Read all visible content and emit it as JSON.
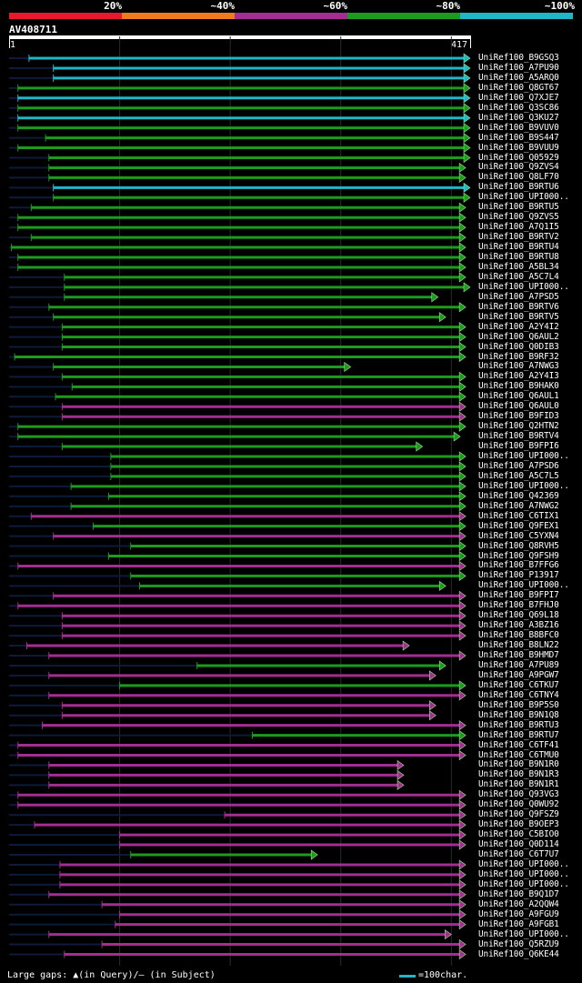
{
  "identity_scale": {
    "labels": [
      "20%",
      "~40%",
      "~60%",
      "~80%",
      "~100%"
    ],
    "colors": [
      "#e8192c",
      "#f07b1f",
      "#a42d92",
      "#1d9b1f",
      "#1fb7c7"
    ]
  },
  "query": {
    "name": "AV408711",
    "start": "1",
    "end": "417",
    "length": 417
  },
  "colors": {
    "cyan": "#1fb7c7",
    "green": "#1d9b1f",
    "purple": "#a42d92",
    "faint": "#0d1a3a"
  },
  "hits": [
    {
      "label": "UniRef100_B9GSQ3",
      "color": "cyan",
      "s": 18,
      "e": 417
    },
    {
      "label": "UniRef100_A7PU90",
      "color": "cyan",
      "s": 40,
      "e": 417
    },
    {
      "label": "UniRef100_A5ARQ0",
      "color": "cyan",
      "s": 40,
      "e": 417
    },
    {
      "label": "UniRef100_Q8GT67",
      "color": "green",
      "s": 8,
      "e": 417
    },
    {
      "label": "UniRef100_Q7XJE7",
      "color": "cyan",
      "s": 8,
      "e": 417
    },
    {
      "label": "UniRef100_Q3SC86",
      "color": "green",
      "s": 8,
      "e": 417
    },
    {
      "label": "UniRef100_Q3KU27",
      "color": "cyan",
      "s": 8,
      "e": 417
    },
    {
      "label": "UniRef100_B9VUV0",
      "color": "green",
      "s": 8,
      "e": 417
    },
    {
      "label": "UniRef100_B9S447",
      "color": "green",
      "s": 33,
      "e": 417
    },
    {
      "label": "UniRef100_B9VUU9",
      "color": "green",
      "s": 8,
      "e": 417
    },
    {
      "label": "UniRef100_Q05929",
      "color": "green",
      "s": 36,
      "e": 417
    },
    {
      "label": "UniRef100_Q9ZVS4",
      "color": "green",
      "s": 36,
      "e": 413
    },
    {
      "label": "UniRef100_Q8LF70",
      "color": "green",
      "s": 36,
      "e": 413
    },
    {
      "label": "UniRef100_B9RTU6",
      "color": "cyan",
      "s": 40,
      "e": 417
    },
    {
      "label": "UniRef100_UPI000..",
      "color": "green",
      "s": 40,
      "e": 417
    },
    {
      "label": "UniRef100_B9RTU5",
      "color": "green",
      "s": 20,
      "e": 413
    },
    {
      "label": "UniRef100_Q9ZVS5",
      "color": "green",
      "s": 8,
      "e": 413
    },
    {
      "label": "UniRef100_A7Q1I5",
      "color": "green",
      "s": 8,
      "e": 413
    },
    {
      "label": "UniRef100_B9RTV2",
      "color": "green",
      "s": 20,
      "e": 413
    },
    {
      "label": "UniRef100_B9RTU4",
      "color": "green",
      "s": 2,
      "e": 413
    },
    {
      "label": "UniRef100_B9RTU8",
      "color": "green",
      "s": 8,
      "e": 413
    },
    {
      "label": "UniRef100_A5BL34",
      "color": "green",
      "s": 8,
      "e": 413
    },
    {
      "label": "UniRef100_A5C7L4",
      "color": "green",
      "s": 50,
      "e": 413
    },
    {
      "label": "UniRef100_UPI000..",
      "color": "green",
      "s": 50,
      "e": 417
    },
    {
      "label": "UniRef100_A7PSD5",
      "color": "green",
      "s": 50,
      "e": 388
    },
    {
      "label": "UniRef100_B9RTV6",
      "color": "green",
      "s": 36,
      "e": 413
    },
    {
      "label": "UniRef100_B9RTV5",
      "color": "green",
      "s": 40,
      "e": 395
    },
    {
      "label": "UniRef100_A2Y4I2",
      "color": "green",
      "s": 48,
      "e": 413
    },
    {
      "label": "UniRef100_Q6AUL2",
      "color": "green",
      "s": 48,
      "e": 413
    },
    {
      "label": "UniRef100_Q0DIB3",
      "color": "green",
      "s": 48,
      "e": 413
    },
    {
      "label": "UniRef100_B9RF32",
      "color": "green",
      "s": 5,
      "e": 413
    },
    {
      "label": "UniRef100_A7NWG3",
      "color": "green",
      "s": 40,
      "e": 309
    },
    {
      "label": "UniRef100_A2Y4I3",
      "color": "green",
      "s": 48,
      "e": 413
    },
    {
      "label": "UniRef100_B9HAK0",
      "color": "green",
      "s": 57,
      "e": 413
    },
    {
      "label": "UniRef100_Q6AUL1",
      "color": "green",
      "s": 42,
      "e": 413
    },
    {
      "label": "UniRef100_Q6AUL0",
      "color": "purple",
      "s": 48,
      "e": 413
    },
    {
      "label": "UniRef100_B9FID3",
      "color": "purple",
      "s": 48,
      "e": 413
    },
    {
      "label": "UniRef100_Q2HTN2",
      "color": "green",
      "s": 8,
      "e": 413
    },
    {
      "label": "UniRef100_B9RTV4",
      "color": "green",
      "s": 8,
      "e": 408
    },
    {
      "label": "UniRef100_B9FPI6",
      "color": "green",
      "s": 48,
      "e": 374
    },
    {
      "label": "UniRef100_UPI000..",
      "color": "green",
      "s": 92,
      "e": 413
    },
    {
      "label": "UniRef100_A7PSD6",
      "color": "green",
      "s": 92,
      "e": 413
    },
    {
      "label": "UniRef100_A5C7L5",
      "color": "green",
      "s": 92,
      "e": 413
    },
    {
      "label": "UniRef100_UPI000..",
      "color": "green",
      "s": 56,
      "e": 413
    },
    {
      "label": "UniRef100_Q42369",
      "color": "green",
      "s": 90,
      "e": 413
    },
    {
      "label": "UniRef100_A7NWG2",
      "color": "green",
      "s": 56,
      "e": 413
    },
    {
      "label": "UniRef100_C6TIX1",
      "color": "purple",
      "s": 20,
      "e": 413
    },
    {
      "label": "UniRef100_Q9FEX1",
      "color": "green",
      "s": 76,
      "e": 413
    },
    {
      "label": "UniRef100_C5YXN4",
      "color": "purple",
      "s": 40,
      "e": 413
    },
    {
      "label": "UniRef100_Q8RVH5",
      "color": "green",
      "s": 110,
      "e": 413
    },
    {
      "label": "UniRef100_Q9FSH9",
      "color": "green",
      "s": 90,
      "e": 413
    },
    {
      "label": "UniRef100_B7FFG6",
      "color": "purple",
      "s": 8,
      "e": 413
    },
    {
      "label": "UniRef100_P13917",
      "color": "green",
      "s": 110,
      "e": 413
    },
    {
      "label": "UniRef100_UPI000..",
      "color": "green",
      "s": 118,
      "e": 395
    },
    {
      "label": "UniRef100_B9FPI7",
      "color": "purple",
      "s": 40,
      "e": 413
    },
    {
      "label": "UniRef100_B7FHJ0",
      "color": "purple",
      "s": 8,
      "e": 413
    },
    {
      "label": "UniRef100_Q69L18",
      "color": "purple",
      "s": 48,
      "e": 413
    },
    {
      "label": "UniRef100_A3BZ16",
      "color": "purple",
      "s": 48,
      "e": 413
    },
    {
      "label": "UniRef100_B8BFC0",
      "color": "purple",
      "s": 48,
      "e": 413
    },
    {
      "label": "UniRef100_B8LN22",
      "color": "purple",
      "s": 16,
      "e": 362
    },
    {
      "label": "UniRef100_B9HMD7",
      "color": "purple",
      "s": 36,
      "e": 413
    },
    {
      "label": "UniRef100_A7PU89",
      "color": "green",
      "s": 170,
      "e": 395
    },
    {
      "label": "UniRef100_A9PGW7",
      "color": "purple",
      "s": 36,
      "e": 386
    },
    {
      "label": "UniRef100_C6TKU7",
      "color": "green",
      "s": 100,
      "e": 413
    },
    {
      "label": "UniRef100_C6TNY4",
      "color": "purple",
      "s": 36,
      "e": 413
    },
    {
      "label": "UniRef100_B9P5S0",
      "color": "purple",
      "s": 48,
      "e": 386
    },
    {
      "label": "UniRef100_B9N1Q8",
      "color": "purple",
      "s": 48,
      "e": 386
    },
    {
      "label": "UniRef100_B9RTU3",
      "color": "purple",
      "s": 30,
      "e": 413
    },
    {
      "label": "UniRef100_B9RTU7",
      "color": "green",
      "s": 220,
      "e": 413
    },
    {
      "label": "UniRef100_C6TF41",
      "color": "purple",
      "s": 8,
      "e": 413
    },
    {
      "label": "UniRef100_C6TMU0",
      "color": "purple",
      "s": 8,
      "e": 413
    },
    {
      "label": "UniRef100_B9N1R0",
      "color": "purple",
      "s": 36,
      "e": 357
    },
    {
      "label": "UniRef100_B9N1R3",
      "color": "purple",
      "s": 36,
      "e": 357
    },
    {
      "label": "UniRef100_B9N1R1",
      "color": "purple",
      "s": 36,
      "e": 357
    },
    {
      "label": "UniRef100_Q93VG3",
      "color": "purple",
      "s": 8,
      "e": 413
    },
    {
      "label": "UniRef100_Q0WU92",
      "color": "purple",
      "s": 8,
      "e": 413
    },
    {
      "label": "UniRef100_Q9FSZ9",
      "color": "purple",
      "s": 195,
      "e": 413
    },
    {
      "label": "UniRef100_B9OEP3",
      "color": "purple",
      "s": 23,
      "e": 413
    },
    {
      "label": "UniRef100_C5BIO0",
      "color": "purple",
      "s": 100,
      "e": 413
    },
    {
      "label": "UniRef100_Q0D114",
      "color": "purple",
      "s": 100,
      "e": 413
    },
    {
      "label": "UniRef100_C6T7U7",
      "color": "green",
      "s": 110,
      "e": 279
    },
    {
      "label": "UniRef100_UPI000..",
      "color": "purple",
      "s": 46,
      "e": 413
    },
    {
      "label": "UniRef100_UPI000..",
      "color": "purple",
      "s": 46,
      "e": 413
    },
    {
      "label": "UniRef100_UPI000..",
      "color": "purple",
      "s": 46,
      "e": 413
    },
    {
      "label": "UniRef100_B9Q1D7",
      "color": "purple",
      "s": 36,
      "e": 413
    },
    {
      "label": "UniRef100_A2QQW4",
      "color": "purple",
      "s": 84,
      "e": 413
    },
    {
      "label": "UniRef100_A9FGU9",
      "color": "purple",
      "s": 100,
      "e": 413
    },
    {
      "label": "UniRef100_A9FGB1",
      "color": "purple",
      "s": 96,
      "e": 413
    },
    {
      "label": "UniRef100_UPI000..",
      "color": "purple",
      "s": 36,
      "e": 400
    },
    {
      "label": "UniRef100_Q5RZU9",
      "color": "purple",
      "s": 84,
      "e": 413
    },
    {
      "label": "UniRef100_Q6KE44",
      "color": "purple",
      "s": 50,
      "e": 413
    }
  ],
  "footer": {
    "large_gaps": "Large gaps: ▲(in Query)/– (in Subject)",
    "legend": "=100char."
  }
}
